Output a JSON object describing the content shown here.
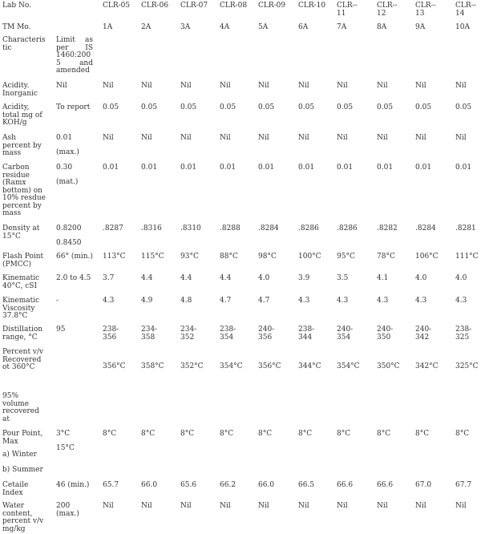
{
  "header": {
    "lab_no": "Lab No.",
    "tm_no": "TM Mo.",
    "lab_ids": [
      "CLR-05",
      "CLR-06",
      "CLR-07",
      "CLR-08",
      "CLR-09",
      "CLR-10"
    ],
    "lab_ids_split": [
      [
        "CLR--",
        "11"
      ],
      [
        "CLR--",
        "12"
      ],
      [
        "CLR--",
        "13"
      ],
      [
        "CLR--",
        "14"
      ]
    ],
    "tm_ids": [
      "1A",
      "2A",
      "3A",
      "4A",
      "5A",
      "6A",
      "7A",
      "8A",
      "9A",
      "10A"
    ],
    "characteristic": [
      "Characteris",
      "tic"
    ],
    "limit": [
      "Limit as",
      "per IS",
      "1460:200",
      "5 and",
      "amended"
    ]
  },
  "rows": {
    "acidity_inorganic": {
      "label": [
        "Acidity.",
        "Inorganic"
      ],
      "limit": "Nil",
      "values": [
        "Nil",
        "Nil",
        "Nil",
        "Nil",
        "Nil",
        "Nil",
        "Nil",
        "Nil",
        "Nil",
        "Nil"
      ]
    },
    "acidity_total": {
      "label": [
        "Acidity,",
        "total mg of",
        "KOH/g"
      ],
      "limit": "To report",
      "values": [
        "0.05",
        "0.05",
        "0.05",
        "0.05",
        "0.05",
        "0.05",
        "0.05",
        "0.05",
        "0.05",
        "0.05"
      ]
    },
    "ash": {
      "label": [
        "Ash",
        "percent by",
        "mass"
      ],
      "limit": [
        "0.01",
        "(max.)"
      ],
      "values": [
        "Nil",
        "Nil",
        "Nil",
        "Nil",
        "Nil",
        "Nil",
        "Nil",
        "Nil",
        "Nil",
        "Nil"
      ]
    },
    "carbon_residue": {
      "label": [
        "Carbon",
        "residue",
        "(Ramx",
        "bottom) on",
        "10% resdue",
        "percent by",
        "mass"
      ],
      "limit": [
        "0.30",
        "(mat.)"
      ],
      "values": [
        "0.01",
        "0.01",
        "0.01",
        "0.01",
        "0.01",
        "0.01",
        "0.01",
        "0.01",
        "0.01",
        "0.01"
      ]
    },
    "density": {
      "label": [
        "Density at",
        "15°C"
      ],
      "limit": [
        "0.8200",
        "0.8450"
      ],
      "values": [
        ".8287",
        ".8316",
        ".8310",
        ".8288",
        ".8284",
        ".8286",
        ".8286",
        ".8282",
        ".8284",
        ".8281"
      ]
    },
    "flash_point": {
      "label": [
        "Flash Point",
        "(PMCC)"
      ],
      "limit": "66° (min.)",
      "values": [
        "113°C",
        "115°C",
        "93°C",
        "88°C",
        "98°C",
        "100°C",
        "95°C",
        "78°C",
        "106°C",
        "111°C"
      ]
    },
    "kinematic_40": {
      "label": [
        "Kinematic",
        "40°C, cSI"
      ],
      "limit": "2.0 to 4.5",
      "values": [
        "3.7",
        "4.4",
        "4.4",
        "4.4",
        "4.0",
        "3.9",
        "3.5",
        "4.1",
        "4.0",
        "4.0"
      ]
    },
    "kinematic_viscosity": {
      "label": [
        "Kinematic",
        "Viscosity",
        "37.8°C"
      ],
      "limit": "-",
      "values": [
        "4.3",
        "4.9",
        "4.8",
        "4.7",
        "4.7",
        "4.3",
        "4.3",
        "4.3",
        "4.3",
        "4.3"
      ]
    },
    "distillation_range": {
      "label": [
        "Distillation",
        "range, °C"
      ],
      "limit": "95",
      "values": [
        [
          "238-",
          "356"
        ],
        [
          "234-",
          "358"
        ],
        [
          "234-",
          "352"
        ],
        [
          "238-",
          "354"
        ],
        [
          "240-",
          "356"
        ],
        [
          "238-",
          "344"
        ],
        [
          "240-",
          "354"
        ],
        [
          "240-",
          "350"
        ],
        [
          "240-",
          "342"
        ],
        [
          "238-",
          "325"
        ]
      ]
    },
    "percent_recovered": {
      "label": [
        "Percent v/v",
        "Recovered",
        "ot 360°C"
      ],
      "values": [
        "356°C",
        "358°C",
        "352°C",
        "354°C",
        "356°C",
        "344°C",
        "354°C",
        "350°C",
        "342°C",
        "325°C"
      ]
    },
    "volume_recovered": {
      "label": [
        "95%",
        "volume",
        "recovered",
        "at"
      ]
    },
    "pour_point": {
      "label": [
        "Pour Point,",
        "Max"
      ],
      "limit": [
        "3°C",
        "15°C"
      ],
      "values": [
        "8°C",
        "8°C",
        "8°C",
        "8°C",
        "8°C",
        "8°C",
        "8°C",
        "8°C",
        "8°C",
        "8°C"
      ],
      "winter": "a) Winter",
      "summer": "b) Summer"
    },
    "cetane_index": {
      "label": [
        "Cetaile",
        "Index"
      ],
      "limit": "46 (min.)",
      "values": [
        "65.7",
        "66.0",
        "65.6",
        "66.2",
        "66.0",
        "66.5",
        "66.6",
        "66.6",
        "67.0",
        "67.7"
      ]
    },
    "water_content": {
      "label": [
        "Water",
        "content,",
        "percent v/v",
        "mg/kg"
      ],
      "limit": [
        "200",
        "(max.)"
      ],
      "values": [
        "Nil",
        "Nil",
        "Nil",
        "Nil",
        "Nil",
        "Nil",
        "Nil",
        "Nil",
        "Nil",
        "Nil"
      ]
    }
  }
}
